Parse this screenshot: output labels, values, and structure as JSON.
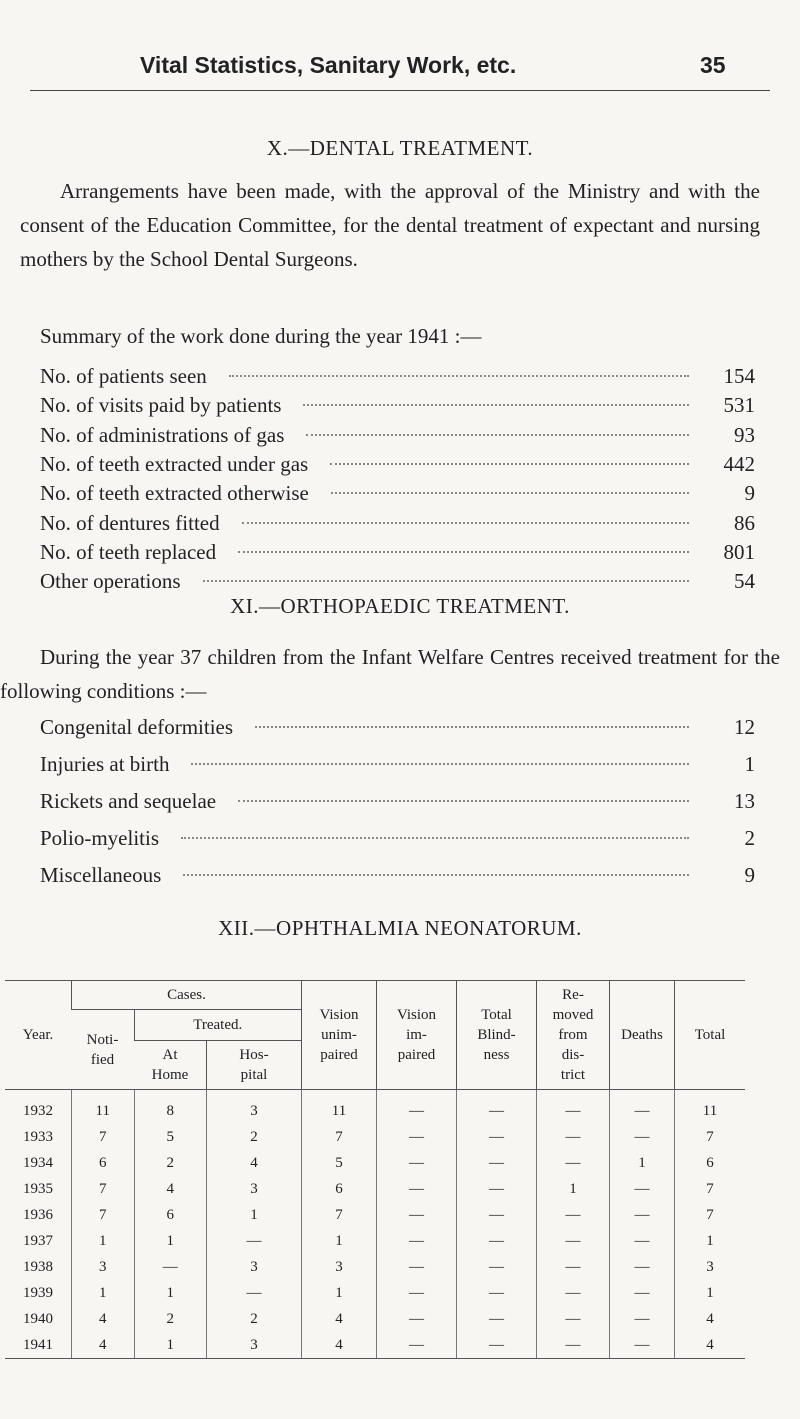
{
  "header": {
    "title": "Vital Statistics, Sanitary Work, etc.",
    "page": "35"
  },
  "dental": {
    "heading": "X.—DENTAL TREATMENT.",
    "paragraph": "Arrangements have been made, with the approval of the Ministry and with the consent of the Education Committee, for the dental treatment of expectant and nursing mothers by the School Dental Surgeons.",
    "intro": "Summary of the work done during the year 1941 :—",
    "items": [
      {
        "label": "No. of patients seen",
        "value": 154
      },
      {
        "label": "No. of visits paid by patients",
        "value": 531
      },
      {
        "label": "No. of administrations of gas",
        "value": 93
      },
      {
        "label": "No. of teeth extracted under gas",
        "value": 442
      },
      {
        "label": "No. of teeth extracted otherwise",
        "value": 9
      },
      {
        "label": "No. of dentures fitted",
        "value": 86
      },
      {
        "label": "No. of teeth replaced",
        "value": 801
      },
      {
        "label": "Other operations",
        "value": 54
      }
    ]
  },
  "orthopaedic": {
    "heading": "XI.—ORTHOPAEDIC TREATMENT.",
    "paragraph": "During the year 37 children from the Infant Welfare Centres received treatment for the following conditions :—",
    "items": [
      {
        "label": "Congenital deformities",
        "value": 12
      },
      {
        "label": "Injuries at birth",
        "value": 1
      },
      {
        "label": "Rickets and sequelae",
        "value": 13
      },
      {
        "label": "Polio-myelitis",
        "value": 2
      },
      {
        "label": "Miscellaneous",
        "value": 9
      }
    ]
  },
  "ophthalmia": {
    "heading": "XII.—OPHTHALMIA NEONATORUM.",
    "table": {
      "headers": {
        "year": "Year.",
        "cases": "Cases.",
        "treated": "Treated.",
        "notified": "Noti-\nfied",
        "at_home": "At\nHome",
        "hospital": "Hos-\npital",
        "vision_unimpaired": "Vision\nunim-\npaired",
        "vision_impaired": "Vision\nim-\npaired",
        "total_blindness": "Total\nBlind-\nness",
        "removed": "Re-\nmoved\nfrom\ndis-\ntrict",
        "deaths": "Deaths",
        "total": "Total"
      },
      "rows": [
        [
          "1932",
          "11",
          "8",
          "3",
          "11",
          "—",
          "—",
          "—",
          "—",
          "11"
        ],
        [
          "1933",
          "7",
          "5",
          "2",
          "7",
          "—",
          "—",
          "—",
          "—",
          "7"
        ],
        [
          "1934",
          "6",
          "2",
          "4",
          "5",
          "—",
          "—",
          "—",
          "1",
          "6"
        ],
        [
          "1935",
          "7",
          "4",
          "3",
          "6",
          "—",
          "—",
          "1",
          "—",
          "7"
        ],
        [
          "1936",
          "7",
          "6",
          "1",
          "7",
          "—",
          "—",
          "—",
          "—",
          "7"
        ],
        [
          "1937",
          "1",
          "1",
          "—",
          "1",
          "—",
          "—",
          "—",
          "—",
          "1"
        ],
        [
          "1938",
          "3",
          "—",
          "3",
          "3",
          "—",
          "—",
          "—",
          "—",
          "3"
        ],
        [
          "1939",
          "1",
          "1",
          "—",
          "1",
          "—",
          "—",
          "—",
          "—",
          "1"
        ],
        [
          "1940",
          "4",
          "2",
          "2",
          "4",
          "—",
          "—",
          "—",
          "—",
          "4"
        ],
        [
          "1941",
          "4",
          "1",
          "3",
          "4",
          "—",
          "—",
          "—",
          "—",
          "4"
        ]
      ]
    }
  }
}
